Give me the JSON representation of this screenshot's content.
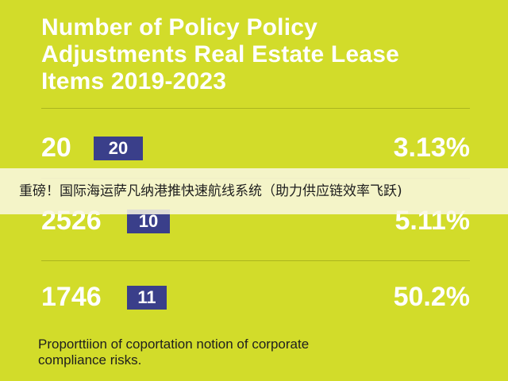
{
  "title": {
    "line1": "Number of Policy Policy",
    "line2": "Adjustments Real Estate Lease",
    "line3": "Items 2019-2023"
  },
  "rows": [
    {
      "number": "20",
      "badge": "20",
      "percent": "3.13%"
    },
    {
      "number": "2526",
      "badge": "10",
      "percent": "5.11%"
    },
    {
      "number": "1746",
      "badge": "11",
      "percent": "50.2%"
    }
  ],
  "banner": {
    "text": "重磅！国际海运萨凡纳港推快速航线系统（助力供应链效率飞跃)"
  },
  "footer": {
    "line1": "Proporttiion of coportation notion of corporate",
    "line2": "compliance risks."
  },
  "colors": {
    "background": "#d2dc2a",
    "badge": "#3a3f8a",
    "text_light": "#ffffff"
  }
}
